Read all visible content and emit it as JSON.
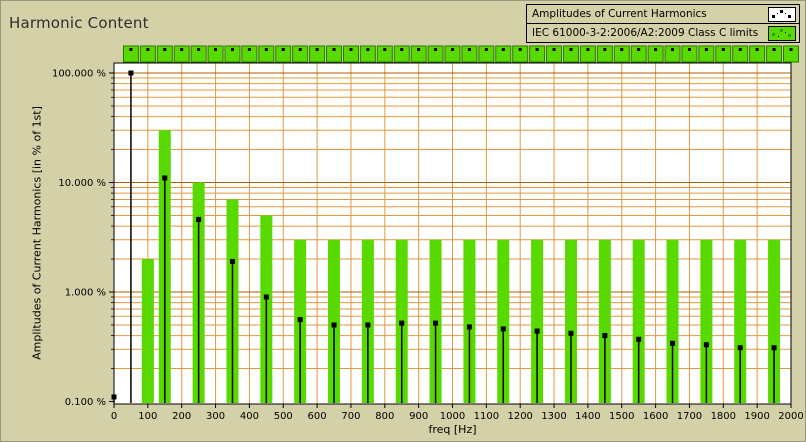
{
  "title": "Harmonic Content",
  "legend": {
    "items": [
      {
        "label": "Amplitudes of Current Harmonics",
        "icon": "scatter-marker-icon"
      },
      {
        "label": "IEC 61000-3-2:2006/A2:2009 Class C limits",
        "icon": "green-bar-marker-icon"
      }
    ]
  },
  "colors": {
    "background": "#d4d1a8",
    "plot_bg": "#ffffff",
    "grid_minor": "#e09940",
    "grid_major": "#b05f00",
    "bar_green": "#58d900",
    "pass_square_border": "#2a7a00",
    "marker_black": "#000000"
  },
  "chart_data": {
    "type": "bar",
    "title": "Harmonic Content",
    "xlabel": "freq [Hz]",
    "ylabel": "Amplitudes of Current Harmonics [in % of 1st]",
    "x_axis": {
      "min": 0,
      "max": 2000,
      "tick_step": 100
    },
    "x_tick_labels": [
      "0",
      "100",
      "200",
      "300",
      "400",
      "500",
      "600",
      "700",
      "800",
      "900",
      "1000",
      "1100",
      "1200",
      "1300",
      "1400",
      "1500",
      "1600",
      "1700",
      "1800",
      "1900",
      "2000"
    ],
    "y_axis": {
      "scale": "log",
      "min": 0.1,
      "max": 120,
      "ticks": [
        {
          "v": 100,
          "label": "100.000 %"
        },
        {
          "v": 10,
          "label": "10.000 %"
        },
        {
          "v": 1,
          "label": "1.000 %"
        },
        {
          "v": 0.1,
          "label": "0.100 %"
        }
      ]
    },
    "grid": true,
    "legend_position": "top-right",
    "series": [
      {
        "name": "Amplitudes of Current Harmonics",
        "type": "scatter",
        "color": "#000000",
        "points": [
          [
            0,
            0.11
          ],
          [
            50,
            100
          ],
          [
            150,
            11
          ],
          [
            250,
            4.6
          ],
          [
            350,
            1.9
          ],
          [
            450,
            0.9
          ],
          [
            550,
            0.56
          ],
          [
            650,
            0.5
          ],
          [
            750,
            0.5
          ],
          [
            850,
            0.52
          ],
          [
            950,
            0.52
          ],
          [
            1050,
            0.48
          ],
          [
            1150,
            0.46
          ],
          [
            1250,
            0.44
          ],
          [
            1350,
            0.42
          ],
          [
            1450,
            0.4
          ],
          [
            1550,
            0.37
          ],
          [
            1650,
            0.34
          ],
          [
            1750,
            0.33
          ],
          [
            1850,
            0.31
          ],
          [
            1950,
            0.31
          ]
        ]
      },
      {
        "name": "IEC 61000-3-2:2006/A2:2009 Class C limits",
        "type": "bar",
        "color": "#58d900",
        "points": [
          [
            100,
            2
          ],
          [
            150,
            30
          ],
          [
            250,
            10
          ],
          [
            350,
            7
          ],
          [
            450,
            5
          ],
          [
            550,
            3
          ],
          [
            650,
            3
          ],
          [
            750,
            3
          ],
          [
            850,
            3
          ],
          [
            950,
            3
          ],
          [
            1050,
            3
          ],
          [
            1150,
            3
          ],
          [
            1250,
            3
          ],
          [
            1350,
            3
          ],
          [
            1450,
            3
          ],
          [
            1550,
            3
          ],
          [
            1650,
            3
          ],
          [
            1750,
            3
          ],
          [
            1850,
            3
          ],
          [
            1950,
            3
          ]
        ]
      }
    ],
    "pass_indicator_strip": {
      "count": 40,
      "freq_start": 50,
      "freq_step": 50,
      "color": "#58d900"
    }
  }
}
